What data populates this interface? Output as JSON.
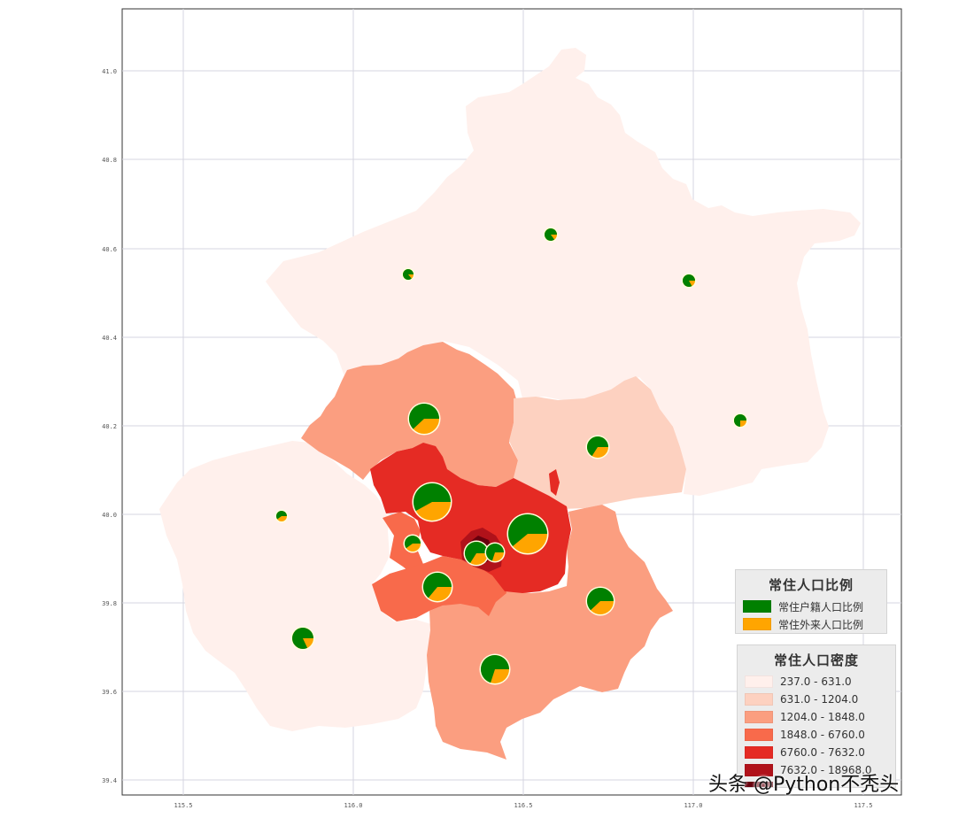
{
  "map": {
    "axes": {
      "x_ticks": [
        "115.5",
        "116.0",
        "116.5",
        "117.0",
        "117.5"
      ],
      "y_ticks": [
        "41.0",
        "40.8",
        "40.6",
        "40.4",
        "40.2",
        "40.0",
        "39.8",
        "39.6",
        "39.4"
      ]
    },
    "colors": {
      "density_1": "#fff0ec",
      "density_2": "#fdd1c0",
      "density_3": "#fb9e80",
      "density_4": "#f86a4b",
      "density_5": "#e52b24",
      "density_6": "#b0121a",
      "density_7": "#67000d",
      "resident_local": "#008000",
      "resident_migrant": "#ffa500"
    },
    "pies": [
      {
        "local": 0.85,
        "migrant": 0.15
      },
      {
        "local": 0.86,
        "migrant": 0.14
      },
      {
        "local": 0.83,
        "migrant": 0.17
      },
      {
        "local": 0.75,
        "migrant": 0.25
      },
      {
        "local": 0.62,
        "migrant": 0.38
      },
      {
        "local": 0.66,
        "migrant": 0.34
      },
      {
        "local": 0.58,
        "migrant": 0.42
      },
      {
        "local": 0.6,
        "migrant": 0.4
      },
      {
        "local": 0.61,
        "migrant": 0.39
      },
      {
        "local": 0.6,
        "migrant": 0.4
      },
      {
        "local": 0.66,
        "migrant": 0.34
      },
      {
        "local": 0.7,
        "migrant": 0.3
      },
      {
        "local": 0.64,
        "migrant": 0.36
      },
      {
        "local": 0.62,
        "migrant": 0.38
      },
      {
        "local": 0.82,
        "migrant": 0.18
      },
      {
        "local": 0.7,
        "migrant": 0.3
      }
    ]
  },
  "legend_ratio": {
    "title": "常住人口比例",
    "items": [
      "常住户籍人口比例",
      "常住外来人口比例"
    ]
  },
  "legend_density": {
    "title": "常住人口密度",
    "items": [
      "237.0 - 631.0",
      "631.0 - 1204.0",
      "1204.0 - 1848.0",
      "1848.0 - 6760.0",
      "6760.0 - 7632.0",
      "7632.0 - 18968.0",
      ""
    ]
  },
  "watermark": "头条 @Python不秃头"
}
